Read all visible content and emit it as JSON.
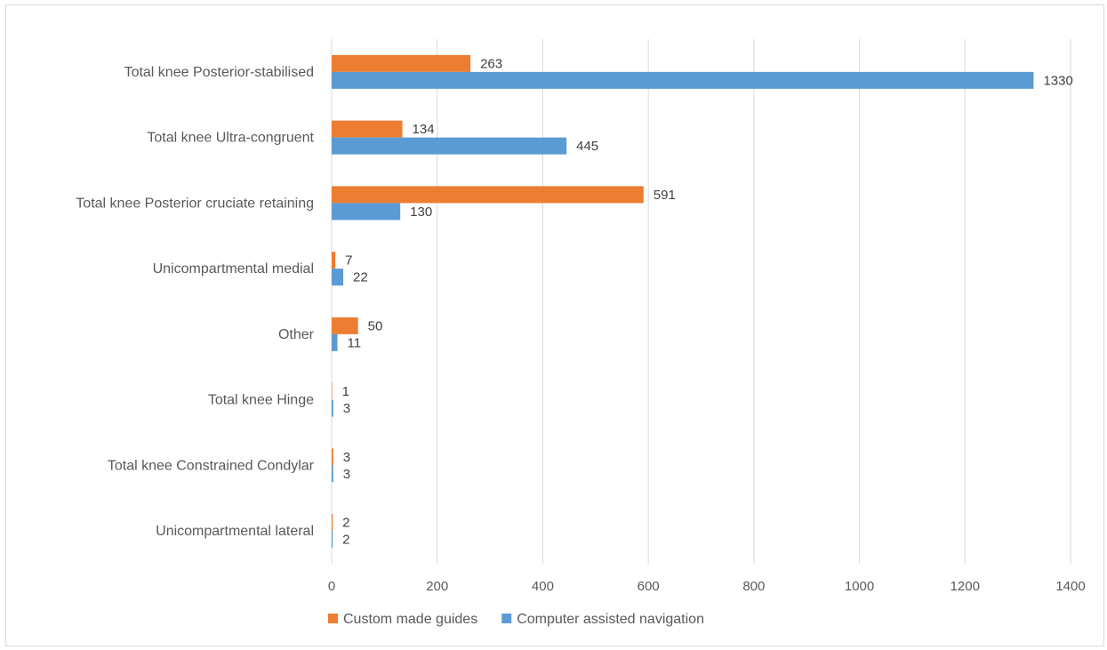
{
  "chart_data": {
    "type": "bar",
    "orientation": "horizontal",
    "categories": [
      "Total knee Posterior-stabilised",
      "Total knee Ultra-congruent",
      "Total knee Posterior cruciate retaining",
      "Unicompartmental medial",
      "Other",
      "Total knee Hinge",
      "Total knee Constrained Condylar",
      "Unicompartmental lateral"
    ],
    "series": [
      {
        "name": "Custom made guides",
        "color": "#ED7D31",
        "values": [
          263,
          134,
          591,
          7,
          50,
          1,
          3,
          2
        ]
      },
      {
        "name": "Computer assisted navigation",
        "color": "#5B9BD5",
        "values": [
          1330,
          445,
          130,
          22,
          11,
          3,
          3,
          2
        ]
      }
    ],
    "xlim": [
      0,
      1400
    ],
    "xticks": [
      0,
      200,
      400,
      600,
      800,
      1000,
      1200,
      1400
    ],
    "grid": "vertical",
    "legend": "bottom",
    "data_labels": true
  }
}
